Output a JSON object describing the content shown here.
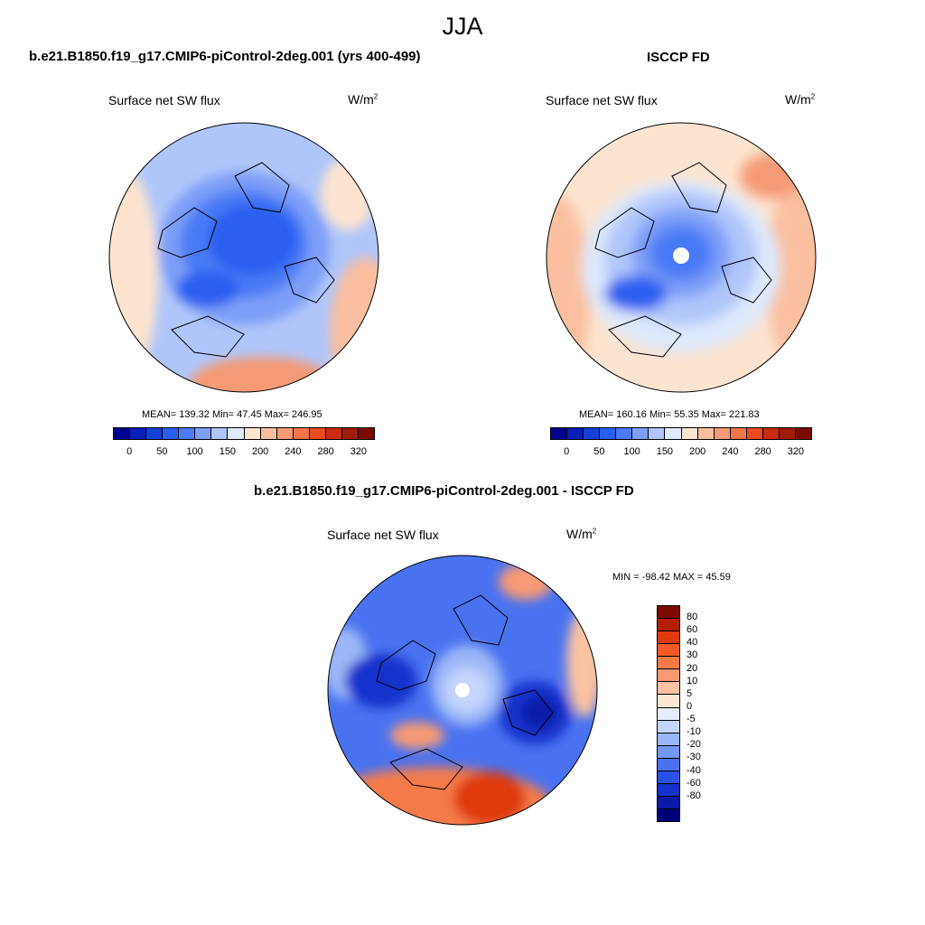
{
  "title": "JJA",
  "panels": [
    {
      "case_title": "b.e21.B1850.f19_g17.CMIP6-piControl-2deg.001 (yrs 400-499)",
      "variable": "Surface net SW flux",
      "units": "W/m",
      "units_sup": "2",
      "stats": "MEAN= 139.32  Min=  47.45  Max= 246.95"
    },
    {
      "case_title": "ISCCP FD",
      "variable": "Surface net SW flux",
      "units": "W/m",
      "units_sup": "2",
      "stats": "MEAN= 160.16  Min=  55.35  Max= 221.83"
    },
    {
      "case_title": "b.e21.B1850.f19_g17.CMIP6-piControl-2deg.001 - ISCCP FD",
      "variable": "Surface net SW flux",
      "units": "W/m",
      "units_sup": "2",
      "stats": "MIN = -98.42 MAX =  45.59"
    }
  ],
  "colorbar_abs": {
    "colors": [
      "#00008f",
      "#0a1fb6",
      "#1440d4",
      "#2a5ef0",
      "#4a7af5",
      "#7d9ef8",
      "#b0c6fa",
      "#dde9fc",
      "#fde4d0",
      "#f9bfa0",
      "#f59a74",
      "#f2744b",
      "#e84a22",
      "#c92b10",
      "#a01b08",
      "#7a0a02"
    ],
    "ticks": [
      "0",
      "50",
      "100",
      "150",
      "200",
      "240",
      "280",
      "320"
    ]
  },
  "colorbar_diff": {
    "colors": [
      "#7a0a02",
      "#b22000",
      "#df3a10",
      "#f25a28",
      "#f57a4a",
      "#f79a74",
      "#f9c2a2",
      "#fde6d4",
      "#e6eefc",
      "#c4d6fb",
      "#9bb7f8",
      "#7397f5",
      "#4a72f0",
      "#2a50e6",
      "#1432cc",
      "#0a1aa8",
      "#00007a"
    ],
    "ticks": [
      "80",
      "60",
      "40",
      "30",
      "20",
      "10",
      "5",
      "0",
      "-5",
      "-10",
      "-20",
      "-30",
      "-40",
      "-60",
      "-80"
    ]
  }
}
